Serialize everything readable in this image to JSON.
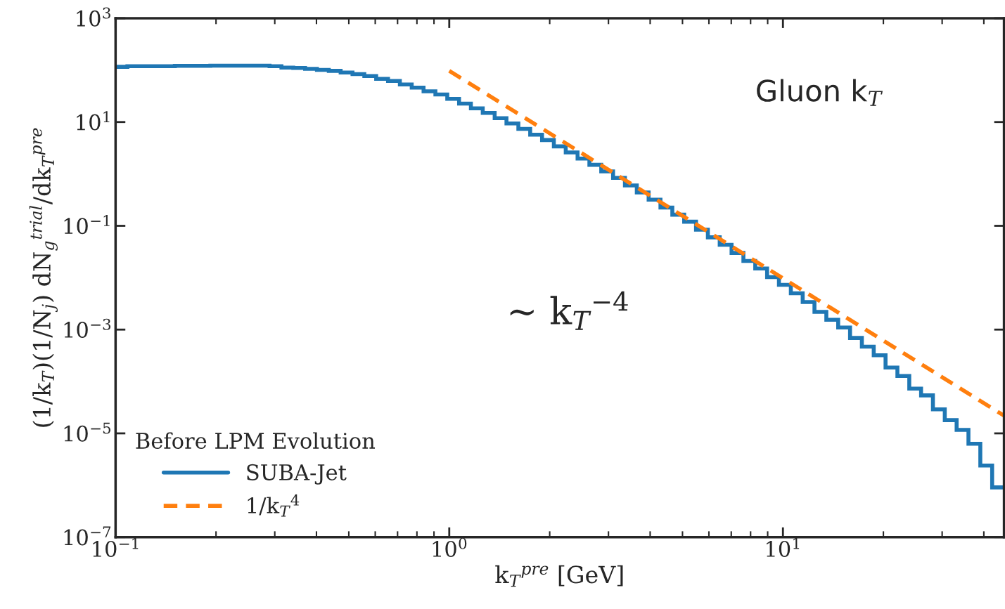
{
  "chart_data": {
    "type": "histogram",
    "xlabel": "k$_{T}$$^{pre}$ [GeV]",
    "ylabel": "(1/k$_{T}$)(1/N$_{j}$) dN$_{g}$$^{trial}$/dk$_{T}$$^{pre}$",
    "log": "xy",
    "xlim": [
      0.1,
      45.97
    ],
    "ylim": [
      1e-07,
      1000
    ],
    "xticks": [
      {
        "value": 0.1,
        "label": "10$^{−1}$"
      },
      {
        "value": 1,
        "label": "10$^{0}$"
      },
      {
        "value": 10,
        "label": "10$^{1}$"
      }
    ],
    "yticks": [
      {
        "value": 1e-07,
        "label": "10$^{−7}$"
      },
      {
        "value": 1e-05,
        "label": "10$^{−5}$"
      },
      {
        "value": 0.001,
        "label": "10$^{−3}$"
      },
      {
        "value": 0.1,
        "label": "10$^{−1}$"
      },
      {
        "value": 10,
        "label": "10$^{1}$"
      },
      {
        "value": 1000,
        "label": "10$^{3}$"
      }
    ],
    "bins": [
      0.1,
      0.1085,
      0.1178,
      0.1278,
      0.1387,
      0.1505,
      0.1633,
      0.1772,
      0.1923,
      0.2087,
      0.2265,
      0.2458,
      0.2667,
      0.2894,
      0.3141,
      0.3408,
      0.3698,
      0.4013,
      0.4355,
      0.4726,
      0.5129,
      0.5565,
      0.6039,
      0.6554,
      0.7112,
      0.7718,
      0.8375,
      0.9088,
      0.9863,
      1.07,
      1.161,
      1.26,
      1.368,
      1.484,
      1.611,
      1.748,
      1.897,
      2.058,
      2.234,
      2.424,
      2.63,
      2.854,
      3.097,
      3.361,
      3.648,
      3.958,
      4.295,
      4.661,
      5.058,
      5.489,
      5.957,
      6.464,
      7.015,
      7.612,
      8.26,
      8.964,
      9.727,
      10.56,
      11.46,
      12.43,
      13.49,
      14.64,
      15.89,
      17.24,
      18.71,
      20.3,
      22.03,
      23.91,
      25.94,
      28.15,
      30.55,
      33.15,
      35.97,
      39.04,
      42.36,
      45.97
    ],
    "series": [
      {
        "name": "SUBA-Jet",
        "color": "#1f77b4",
        "values": [
          116,
          119,
          119,
          119,
          119,
          121,
          121,
          121,
          122,
          122,
          122,
          122,
          122,
          119,
          112,
          110,
          106,
          101,
          97,
          90,
          84,
          77,
          68,
          62,
          53,
          46,
          39,
          34,
          28,
          22.6,
          18.4,
          15.0,
          11.9,
          9.4,
          7.4,
          5.7,
          4.5,
          3.4,
          2.6,
          1.98,
          1.5,
          1.12,
          0.84,
          0.6,
          0.44,
          0.32,
          0.225,
          0.164,
          0.12,
          0.084,
          0.06,
          0.043,
          0.03,
          0.021,
          0.015,
          0.0103,
          0.0073,
          0.005,
          0.0034,
          0.0022,
          0.00155,
          0.0011,
          0.00069,
          0.00047,
          0.00032,
          0.000186,
          0.000128,
          7.3e-05,
          5.4e-05,
          2.9e-05,
          1.8e-05,
          1.17e-05,
          6.3e-06,
          2.4e-06,
          9.1e-07
        ]
      },
      {
        "type": "line",
        "name": "1/k$_{T}$$^{4}$",
        "color": "#ff7f0e",
        "line_style": "dashed",
        "x": [
          1,
          45.97
        ],
        "values": [
          97,
          2.2e-05
        ]
      }
    ],
    "legend_title": "Before LPM Evolution",
    "legend": "bottom left",
    "grid": false,
    "annotations": [
      "Gluon k$_{T}$",
      "∼ k$_{T}$$^{−4}$"
    ]
  }
}
